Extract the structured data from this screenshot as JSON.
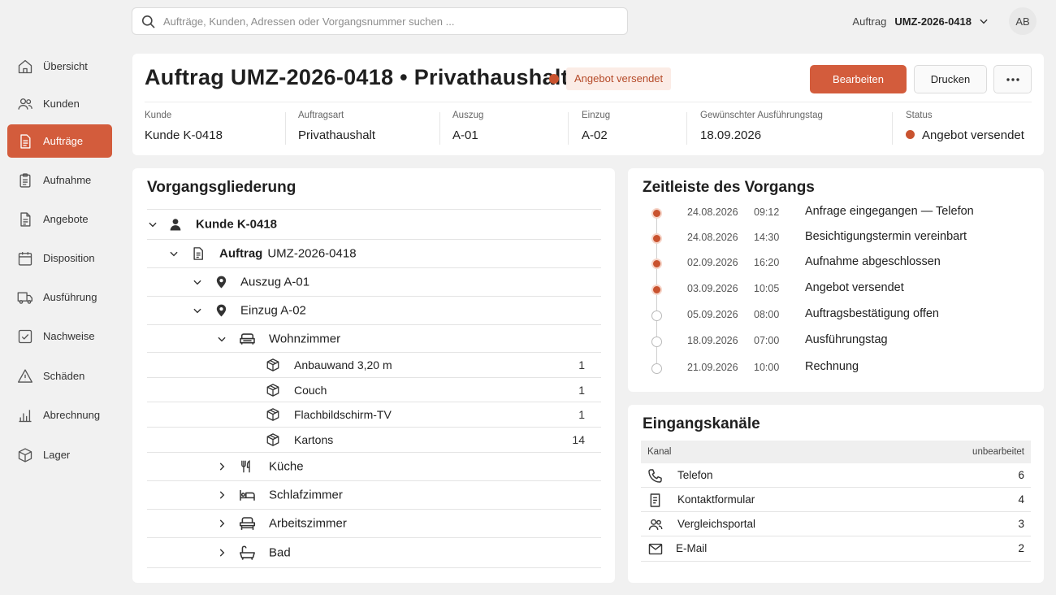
{
  "search": {
    "placeholder": "Aufträge, Kunden, Adressen oder Vorgangsnummer suchen ..."
  },
  "topbar": {
    "context_label": "Auftrag",
    "context_value": "UMZ-2026-0418",
    "avatar_initials": "AB"
  },
  "sidebar": {
    "items": [
      {
        "label": "Übersicht",
        "icon": "home-icon"
      },
      {
        "label": "Kunden",
        "icon": "users-icon"
      },
      {
        "label": "Aufträge",
        "icon": "document-icon",
        "active": true
      },
      {
        "label": "Aufnahme",
        "icon": "clipboard-icon"
      },
      {
        "label": "Angebote",
        "icon": "file-text-icon"
      },
      {
        "label": "Disposition",
        "icon": "calendar-icon"
      },
      {
        "label": "Ausführung",
        "icon": "truck-icon"
      },
      {
        "label": "Nachweise",
        "icon": "check-square-icon"
      },
      {
        "label": "Schäden",
        "icon": "warning-icon"
      },
      {
        "label": "Abrechnung",
        "icon": "bar-chart-icon"
      },
      {
        "label": "Lager",
        "icon": "box-icon"
      }
    ]
  },
  "header": {
    "title": "Auftrag UMZ-2026-0418  •  Privathaushalt",
    "status_badge": "Angebot versendet",
    "buttons": {
      "edit": "Bearbeiten",
      "print": "Drucken",
      "more": "more-icon"
    },
    "meta": [
      {
        "label": "Kunde",
        "value": "Kunde K-0418"
      },
      {
        "label": "Auftragsart",
        "value": "Privathaushalt"
      },
      {
        "label": "Auszug",
        "value": "A-01"
      },
      {
        "label": "Einzug",
        "value": "A-02"
      },
      {
        "label": "Gewünschter Ausführungstag",
        "value": "18.09.2026"
      },
      {
        "label": "Status",
        "value": "Angebot versendet"
      }
    ],
    "colors": {
      "accent": "#d35c3c",
      "status_dot": "#c9532f"
    }
  },
  "tree": {
    "title": "Vorgangsgliederung",
    "rows": [
      {
        "label": "Kunde K-0418",
        "icon": "person-icon",
        "expanded": true
      },
      {
        "prefix": "Auftrag",
        "label": "UMZ-2026-0418",
        "icon": "document-icon",
        "expanded": true
      },
      {
        "label": "Auszug A-01",
        "icon": "map-pin-icon",
        "expanded": true
      },
      {
        "label": "Einzug A-02",
        "icon": "map-pin-icon",
        "expanded": true
      },
      {
        "label": "Wohnzimmer",
        "icon": "sofa-icon",
        "expanded": true
      },
      {
        "label": "Anbauwand 3,20 m",
        "icon": "package-icon",
        "qty": "1"
      },
      {
        "label": "Couch",
        "icon": "package-icon",
        "qty": "1"
      },
      {
        "label": "Flachbildschirm-TV",
        "icon": "package-icon",
        "qty": "1"
      },
      {
        "label": "Kartons",
        "icon": "package-icon",
        "qty": "14"
      },
      {
        "label": "Küche",
        "icon": "cutlery-icon",
        "expanded": false
      },
      {
        "label": "Schlafzimmer",
        "icon": "bed-icon",
        "expanded": false
      },
      {
        "label": "Arbeitszimmer",
        "icon": "desk-chair-icon",
        "expanded": false
      },
      {
        "label": "Bad",
        "icon": "bathtub-icon",
        "expanded": false
      }
    ]
  },
  "timeline": {
    "title": "Zeitleiste des Vorgangs",
    "events": [
      {
        "date": "24.08.2026",
        "time": "09:12",
        "text": "Anfrage eingegangen — Telefon",
        "done": true
      },
      {
        "date": "24.08.2026",
        "time": "14:30",
        "text": "Besichtigungstermin vereinbart",
        "done": true
      },
      {
        "date": "02.09.2026",
        "time": "16:20",
        "text": "Aufnahme abgeschlossen",
        "done": true
      },
      {
        "date": "03.09.2026",
        "time": "10:05",
        "text": "Angebot versendet",
        "done": true
      },
      {
        "date": "05.09.2026",
        "time": "08:00",
        "text": "Auftragsbestätigung offen",
        "done": false
      },
      {
        "date": "18.09.2026",
        "time": "07:00",
        "text": "Ausführungstag",
        "done": false
      },
      {
        "date": "21.09.2026",
        "time": "10:00",
        "text": "Rechnung",
        "done": false
      }
    ]
  },
  "channels": {
    "title": "Eingangskanäle",
    "columns": [
      "Kanal",
      "unbearbeitet"
    ],
    "rows": [
      {
        "name": "Telefon",
        "count": "6",
        "icon": "phone-icon"
      },
      {
        "name": "Kontaktformular",
        "count": "4",
        "icon": "form-icon"
      },
      {
        "name": "Vergleichsportal",
        "count": "3",
        "icon": "users-icon"
      },
      {
        "name": "E-Mail",
        "count": "2",
        "icon": "mail-icon"
      }
    ]
  }
}
